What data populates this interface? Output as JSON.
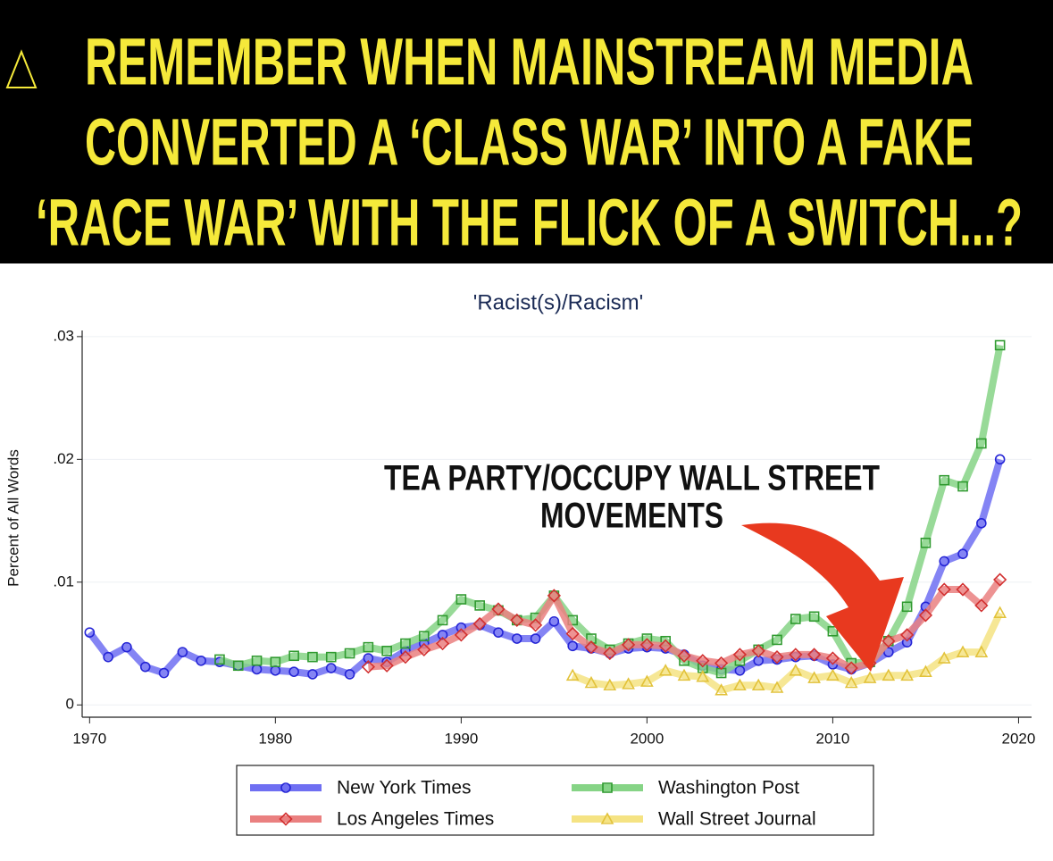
{
  "header": {
    "lines": [
      "REMEMBER WHEN MAINSTREAM MEDIA",
      "CONVERTED A ‘CLASS WAR’ INTO A FAKE",
      "‘RACE WAR’ WITH THE FLICK OF A SWITCH...?"
    ]
  },
  "chart_data": {
    "type": "line",
    "title": "'Racist(s)/Racism'",
    "y_label": "Percent of All Words",
    "annotation": [
      "TEA PARTY/OCCUPY WALL STREET",
      "MOVEMENTS"
    ],
    "x": [
      1970,
      1971,
      1972,
      1973,
      1974,
      1975,
      1976,
      1977,
      1978,
      1979,
      1980,
      1981,
      1982,
      1983,
      1984,
      1985,
      1986,
      1987,
      1988,
      1989,
      1990,
      1991,
      1992,
      1993,
      1994,
      1995,
      1996,
      1997,
      1998,
      1999,
      2000,
      2001,
      2002,
      2003,
      2004,
      2005,
      2006,
      2007,
      2008,
      2009,
      2010,
      2011,
      2012,
      2013,
      2014,
      2015,
      2016,
      2017,
      2018,
      2019
    ],
    "xlim": [
      1969.6,
      2020.7
    ],
    "xticks": [
      1970,
      1980,
      1990,
      2000,
      2010,
      2020
    ],
    "ylim": [
      -0.001,
      0.0305
    ],
    "yticks": [
      0,
      {
        "value": 0.01,
        "label": ".01"
      },
      {
        "value": 0.02,
        "label": ".02"
      },
      {
        "value": 0.03,
        "label": ".03"
      }
    ],
    "grid": true,
    "series": [
      {
        "name": "New York Times",
        "color": "#6f6ff2",
        "marker_color": "#2424d6",
        "marker": "circle",
        "values": [
          0.0059,
          0.0039,
          0.0047,
          0.0031,
          0.0026,
          0.0043,
          0.0036,
          0.0035,
          0.0032,
          0.0029,
          0.0028,
          0.0027,
          0.0025,
          0.003,
          0.0025,
          0.0038,
          0.0035,
          0.0044,
          0.005,
          0.0057,
          0.0063,
          0.0065,
          0.0059,
          0.0054,
          0.0054,
          0.0068,
          0.0048,
          0.0046,
          0.0042,
          0.0046,
          0.0047,
          0.0046,
          0.0041,
          0.0032,
          0.0029,
          0.0028,
          0.0036,
          0.0037,
          0.0039,
          0.004,
          0.0033,
          0.0029,
          0.0034,
          0.0043,
          0.0051,
          0.008,
          0.0117,
          0.0123,
          0.0148,
          0.02
        ]
      },
      {
        "name": "Washington Post",
        "color": "#86d486",
        "marker_color": "#2f9a2f",
        "marker": "square",
        "values": [
          null,
          null,
          null,
          null,
          null,
          null,
          null,
          0.0037,
          0.0032,
          0.0036,
          0.0035,
          0.004,
          0.0039,
          0.0039,
          0.0042,
          0.0047,
          0.0044,
          0.005,
          0.0056,
          0.0069,
          0.0086,
          0.0081,
          0.0077,
          0.0069,
          0.0071,
          0.0089,
          0.0069,
          0.0054,
          0.0045,
          0.005,
          0.0054,
          0.0052,
          0.0036,
          0.003,
          0.0026,
          0.0036,
          0.0045,
          0.0053,
          0.007,
          0.0072,
          0.006,
          0.0034,
          0.0035,
          0.0052,
          0.008,
          0.0132,
          0.0183,
          0.0178,
          0.0213,
          0.0293
        ]
      },
      {
        "name": "Los Angeles Times",
        "color": "#ea8080",
        "marker_color": "#d23030",
        "marker": "diamond",
        "values": [
          null,
          null,
          null,
          null,
          null,
          null,
          null,
          null,
          null,
          null,
          null,
          null,
          null,
          null,
          null,
          0.0031,
          0.0032,
          0.0039,
          0.0045,
          0.005,
          0.0057,
          0.0066,
          0.0078,
          0.0069,
          0.0065,
          0.0089,
          0.0058,
          0.0047,
          0.0042,
          0.0049,
          0.0049,
          0.0048,
          0.004,
          0.0036,
          0.0034,
          0.0041,
          0.0044,
          0.0039,
          0.0041,
          0.0041,
          0.0038,
          0.003,
          0.0034,
          0.0052,
          0.0057,
          0.0073,
          0.0094,
          0.0094,
          0.0081,
          0.0102
        ]
      },
      {
        "name": "Wall Street Journal",
        "color": "#f5e383",
        "marker_color": "#e2c23a",
        "marker": "triangle",
        "values": [
          null,
          null,
          null,
          null,
          null,
          null,
          null,
          null,
          null,
          null,
          null,
          null,
          null,
          null,
          null,
          null,
          null,
          null,
          null,
          null,
          null,
          null,
          null,
          null,
          null,
          null,
          0.0024,
          0.0018,
          0.0016,
          0.0017,
          0.0019,
          0.0028,
          0.0024,
          0.0023,
          0.0012,
          0.0016,
          0.0016,
          0.0014,
          0.0028,
          0.0022,
          0.0024,
          0.0018,
          0.0022,
          0.0024,
          0.0024,
          0.0027,
          0.0038,
          0.0043,
          0.0043,
          0.0075
        ]
      }
    ]
  }
}
